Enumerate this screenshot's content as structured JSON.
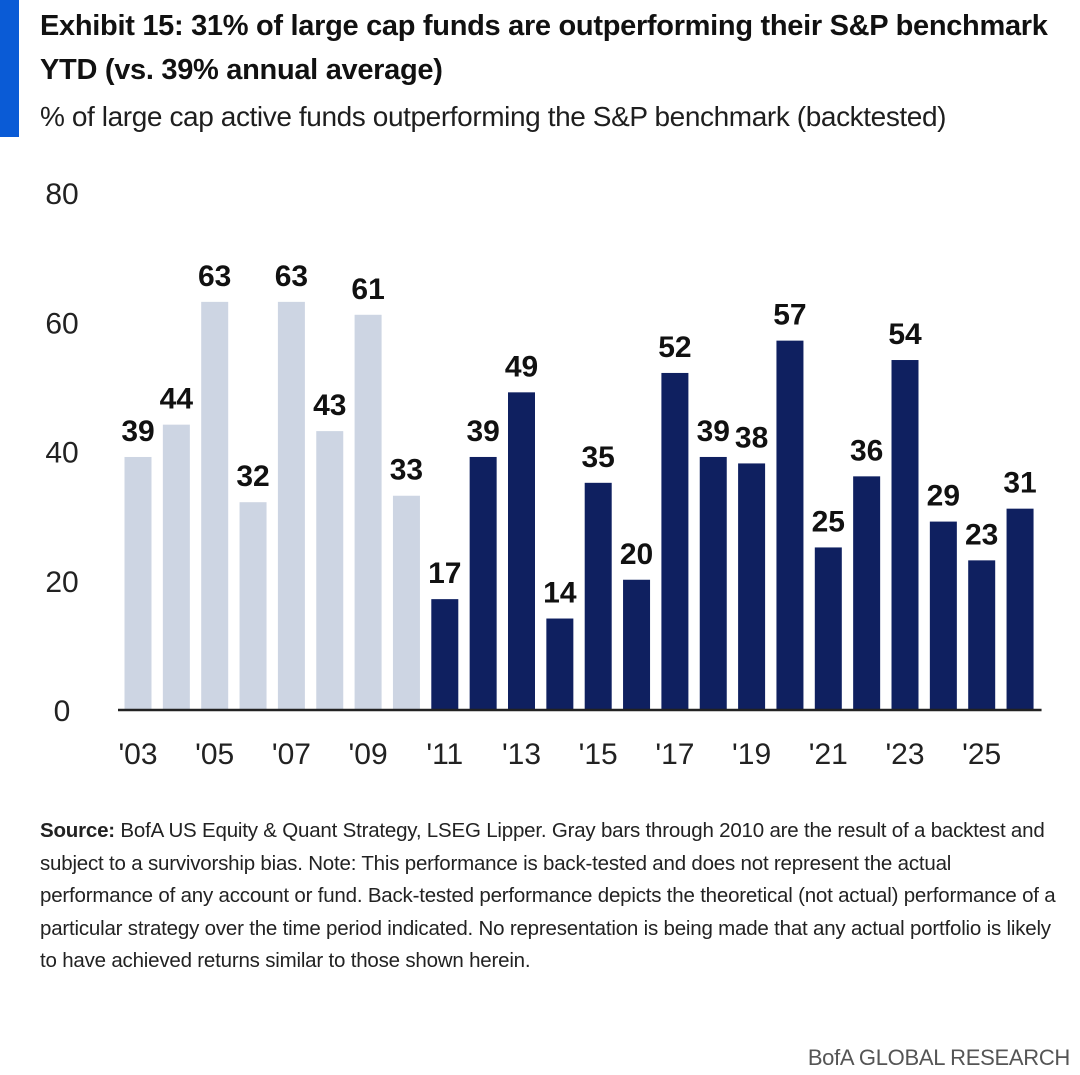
{
  "header": {
    "title": "Exhibit 15: 31% of large cap funds are outperforming their S&P benchmark YTD (vs. 39% annual average)",
    "subtitle": "% of large cap active funds outperforming the S&P benchmark (backtested)"
  },
  "chart_data": {
    "type": "bar",
    "title": "Exhibit 15: 31% of large cap funds are outperforming their S&P benchmark YTD (vs. 39% annual average)",
    "subtitle": "% of large cap active funds outperforming the S&P benchmark (backtested)",
    "ylim": [
      0,
      80
    ],
    "yticks": [
      0,
      20,
      40,
      60,
      80
    ],
    "ytick_labels": [
      "0",
      "20",
      "40",
      "60",
      "80"
    ],
    "categories": [
      "2003",
      "2004",
      "2005",
      "2006",
      "2007",
      "2008",
      "2009",
      "2010",
      "2011",
      "2012",
      "2013",
      "2014",
      "2015",
      "2016",
      "2017",
      "2018",
      "2019",
      "2020",
      "2021",
      "2022",
      "2023",
      "2024",
      "2025",
      "2026"
    ],
    "values": [
      39,
      44,
      63,
      32,
      63,
      43,
      61,
      33,
      17,
      39,
      49,
      14,
      35,
      20,
      52,
      39,
      38,
      57,
      25,
      36,
      54,
      29,
      23,
      31
    ],
    "xtick_labels": [
      "'03",
      "'05",
      "'07",
      "'09",
      "'11",
      "'13",
      "'15",
      "'17",
      "'19",
      "'21",
      "'23",
      "'25"
    ],
    "xtick_every": 2,
    "backtested_through": "2010",
    "colors": {
      "backtested": "#cdd5e3",
      "actual": "#0f2060",
      "axis": "#222222",
      "label": "#111111"
    },
    "grid": false,
    "legend": "none"
  },
  "source": {
    "label": "Source:",
    "text": " BofA US Equity & Quant Strategy, LSEG Lipper. Gray bars through 2010 are the result of a backtest and subject to a survivorship bias. Note: This performance is back-tested and does not represent the actual performance of any account or fund. Back-tested performance depicts the theoretical (not actual) performance of a particular strategy over the time period indicated. No representation is being made that any actual portfolio is likely to have achieved returns similar to those shown herein."
  },
  "footer": {
    "brand": "BofA GLOBAL RESEARCH"
  }
}
